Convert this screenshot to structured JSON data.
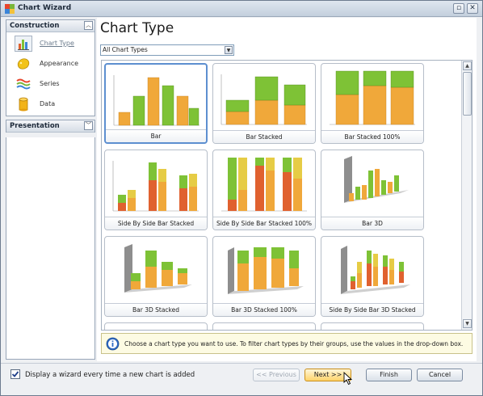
{
  "window": {
    "title": "Chart Wizard",
    "minimize_icon": "minimize-icon",
    "close_icon": "close-icon"
  },
  "sidebar": {
    "groups": [
      {
        "title": "Construction",
        "items": [
          {
            "label": "Chart Type",
            "icon": "chart-type-icon",
            "active": true
          },
          {
            "label": "Appearance",
            "icon": "palette-icon",
            "active": false
          },
          {
            "label": "Series",
            "icon": "series-icon",
            "active": false
          },
          {
            "label": "Data",
            "icon": "database-icon",
            "active": false
          }
        ]
      },
      {
        "title": "Presentation",
        "items": []
      }
    ]
  },
  "main": {
    "title": "Chart Type",
    "filter": {
      "selected": "All Chart Types"
    },
    "chart_types": [
      {
        "label": "Bar",
        "selected": true
      },
      {
        "label": "Bar Stacked",
        "selected": false
      },
      {
        "label": "Bar Stacked 100%",
        "selected": false
      },
      {
        "label": "Side By Side Bar Stacked",
        "selected": false
      },
      {
        "label": "Side By Side Bar Stacked 100%",
        "selected": false
      },
      {
        "label": "Bar 3D",
        "selected": false
      },
      {
        "label": "Bar 3D Stacked",
        "selected": false
      },
      {
        "label": "Bar 3D Stacked 100%",
        "selected": false
      },
      {
        "label": "Side By Side Bar 3D Stacked",
        "selected": false
      }
    ],
    "info": "Choose a chart type you want to use. To filter chart types by their groups, use the values in the drop-down box."
  },
  "footer": {
    "checkbox_label": "Display a wizard every time a new chart is added",
    "checkbox_checked": true,
    "previous_label": "<< Previous",
    "next_label": "Next >>",
    "finish_label": "Finish",
    "cancel_label": "Cancel"
  },
  "colors": {
    "green": "#7ec236",
    "orange": "#f0a83a",
    "red": "#e0612f",
    "yellow": "#e6cc45",
    "selection": "#5d8fd0"
  }
}
